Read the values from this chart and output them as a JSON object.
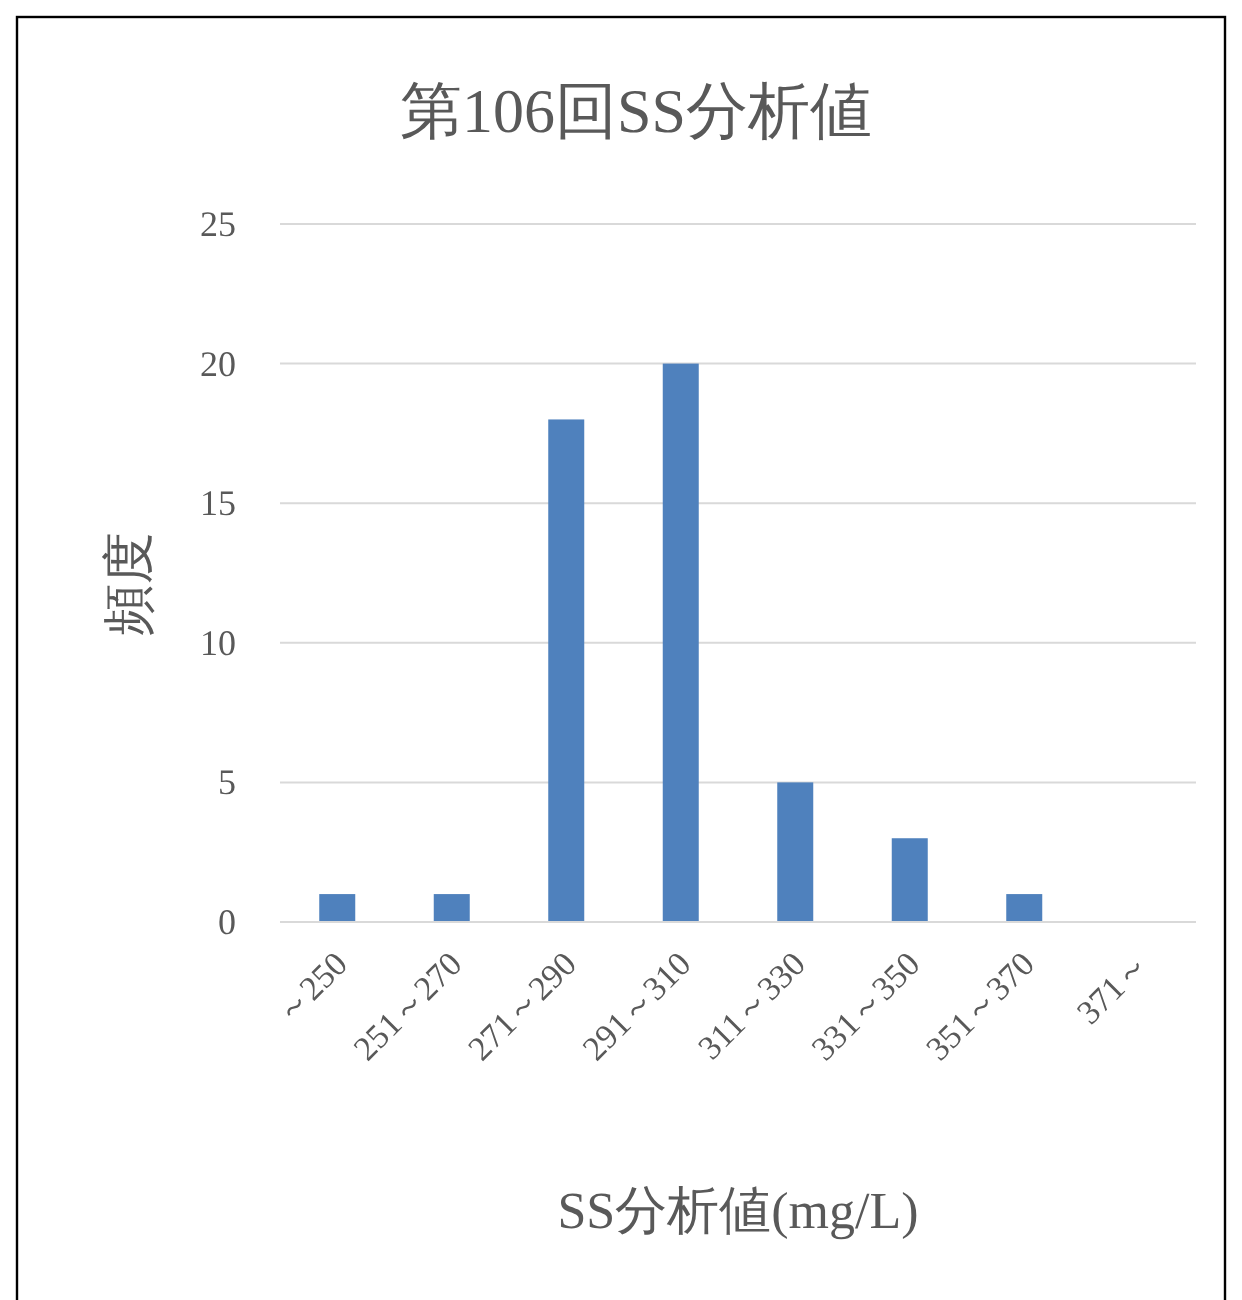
{
  "chart_data": {
    "type": "bar",
    "title": "第106回SS分析値",
    "xlabel": "SS分析値(mg/L)",
    "ylabel": "頻度",
    "categories": [
      "～250",
      "251～270",
      "271～290",
      "291～310",
      "311～330",
      "331～350",
      "351～370",
      "371～"
    ],
    "values": [
      1,
      1,
      18,
      20,
      5,
      3,
      1,
      0
    ],
    "color": "#4f81bd",
    "ylim": [
      0,
      25
    ],
    "yticks": [
      0,
      5,
      10,
      15,
      20,
      25
    ],
    "grid": "y"
  }
}
